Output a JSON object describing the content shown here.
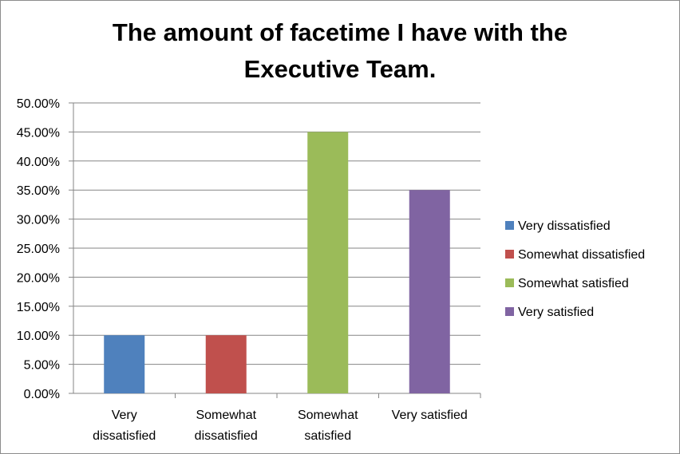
{
  "chart_data": {
    "type": "bar",
    "title_lines": [
      "The amount of facetime I have with the",
      "Executive Team."
    ],
    "categories": [
      {
        "lines": [
          "Very",
          "dissatisfied"
        ]
      },
      {
        "lines": [
          "Somewhat",
          "dissatisfied"
        ]
      },
      {
        "lines": [
          "Somewhat",
          "satisfied"
        ]
      },
      {
        "lines": [
          "Very satisfied"
        ]
      }
    ],
    "values": [
      0.1,
      0.1,
      0.45,
      0.35
    ],
    "colors": [
      "#4f81bd",
      "#c0504d",
      "#9bbb59",
      "#8064a2"
    ],
    "ylim": [
      0,
      0.5
    ],
    "y_ticks": [
      "0.00%",
      "5.00%",
      "10.00%",
      "15.00%",
      "20.00%",
      "25.00%",
      "30.00%",
      "35.00%",
      "40.00%",
      "45.00%",
      "50.00%"
    ],
    "grid": true,
    "legend": {
      "position": "right",
      "entries": [
        "Very dissatisfied",
        "Somewhat dissatisfied",
        "Somewhat satisfied",
        "Very satisfied"
      ]
    }
  }
}
